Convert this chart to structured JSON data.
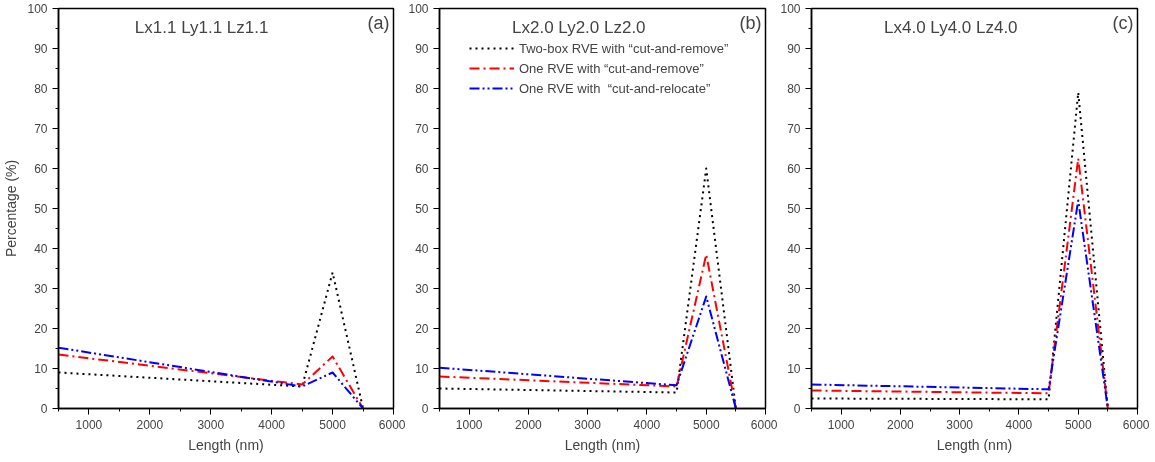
{
  "chart_data": [
    {
      "type": "line",
      "title": "Lx1.1 Ly1.1 Lz1.1",
      "annotations": [
        "(a)"
      ],
      "xlabel": "Length (nm)",
      "ylabel": "Percentage (%)",
      "x": [
        500,
        4500,
        5000,
        5500
      ],
      "xlim": [
        500,
        6000
      ],
      "ylim": [
        0,
        100
      ],
      "xticks": [
        {
          "value": 500,
          "label": null
        },
        1000,
        {
          "value": 1500,
          "label": null
        },
        2000,
        {
          "value": 2500,
          "label": null
        },
        3000,
        {
          "value": 3500,
          "label": null
        },
        4000,
        {
          "value": 4500,
          "label": null
        },
        5000,
        {
          "value": 5500,
          "label": null
        },
        6000
      ],
      "yticks": [
        0,
        {
          "value": 5,
          "label": null
        },
        10,
        {
          "value": 15,
          "label": null
        },
        20,
        {
          "value": 25,
          "label": null
        },
        30,
        {
          "value": 35,
          "label": null
        },
        40,
        {
          "value": 45,
          "label": null
        },
        50,
        {
          "value": 55,
          "label": null
        },
        60,
        {
          "value": 65,
          "label": null
        },
        70,
        {
          "value": 75,
          "label": null
        },
        80,
        {
          "value": 85,
          "label": null
        },
        90,
        {
          "value": 95,
          "label": null
        },
        100
      ],
      "grid": false,
      "legend": false,
      "series": [
        {
          "color": "#000000",
          "line_style": "dotted",
          "values": [
            9,
            5.5,
            34,
            0
          ]
        },
        {
          "color": "#ff0000",
          "line_style": "dashdot",
          "values": [
            13.5,
            6,
            13,
            0
          ]
        },
        {
          "color": "#0000ff",
          "line_style": "dashdotdot",
          "values": [
            15.2,
            5.5,
            9,
            0
          ]
        }
      ]
    },
    {
      "type": "line",
      "title": "Lx2.0 Ly2.0 Lz2.0",
      "annotations": [
        "(b)"
      ],
      "xlabel": "Length (nm)",
      "x": [
        500,
        4500,
        5000,
        5500
      ],
      "xlim": [
        500,
        6000
      ],
      "ylim": [
        0,
        100
      ],
      "xticks": [
        {
          "value": 500,
          "label": null
        },
        1000,
        {
          "value": 1500,
          "label": null
        },
        2000,
        {
          "value": 2500,
          "label": null
        },
        3000,
        {
          "value": 3500,
          "label": null
        },
        4000,
        {
          "value": 4500,
          "label": null
        },
        5000,
        {
          "value": 5500,
          "label": null
        },
        6000
      ],
      "yticks": [
        0,
        {
          "value": 5,
          "label": null
        },
        10,
        {
          "value": 15,
          "label": null
        },
        20,
        {
          "value": 25,
          "label": null
        },
        30,
        {
          "value": 35,
          "label": null
        },
        40,
        {
          "value": 45,
          "label": null
        },
        50,
        {
          "value": 55,
          "label": null
        },
        60,
        {
          "value": 65,
          "label": null
        },
        70,
        {
          "value": 75,
          "label": null
        },
        80,
        {
          "value": 85,
          "label": null
        },
        90,
        {
          "value": 95,
          "label": null
        },
        100
      ],
      "grid": false,
      "legend": "top left",
      "series": [
        {
          "name": "Two-box RVE with “cut-and-remove”",
          "color": "#000000",
          "line_style": "dotted",
          "values": [
            5,
            4,
            60,
            0
          ]
        },
        {
          "name": "One RVE with “cut-and-remove”",
          "color": "#ff0000",
          "line_style": "dashdot",
          "values": [
            8,
            5.5,
            38.5,
            0
          ]
        },
        {
          "name": "One RVE with  “cut-and-relocate”",
          "color": "#0000ff",
          "line_style": "dashdotdot",
          "values": [
            10.2,
            5.8,
            28,
            0
          ]
        }
      ]
    },
    {
      "type": "line",
      "title": "Lx4.0 Ly4.0 Lz4.0",
      "annotations": [
        "(c)"
      ],
      "xlabel": "Length (nm)",
      "x": [
        500,
        4500,
        5000,
        5500
      ],
      "xlim": [
        500,
        6000
      ],
      "ylim": [
        0,
        100
      ],
      "xticks": [
        {
          "value": 500,
          "label": null
        },
        1000,
        {
          "value": 1500,
          "label": null
        },
        2000,
        {
          "value": 2500,
          "label": null
        },
        3000,
        {
          "value": 3500,
          "label": null
        },
        4000,
        {
          "value": 4500,
          "label": null
        },
        5000,
        {
          "value": 5500,
          "label": null
        },
        6000
      ],
      "yticks": [
        0,
        {
          "value": 5,
          "label": null
        },
        10,
        {
          "value": 15,
          "label": null
        },
        20,
        {
          "value": 25,
          "label": null
        },
        30,
        {
          "value": 35,
          "label": null
        },
        40,
        {
          "value": 45,
          "label": null
        },
        50,
        {
          "value": 55,
          "label": null
        },
        60,
        {
          "value": 65,
          "label": null
        },
        70,
        {
          "value": 75,
          "label": null
        },
        80,
        {
          "value": 85,
          "label": null
        },
        90,
        {
          "value": 95,
          "label": null
        },
        100
      ],
      "grid": false,
      "legend": false,
      "series": [
        {
          "color": "#000000",
          "line_style": "dotted",
          "values": [
            2.5,
            2.3,
            79,
            0
          ]
        },
        {
          "color": "#ff0000",
          "line_style": "dashdot",
          "values": [
            4.5,
            3.8,
            62.5,
            0
          ]
        },
        {
          "color": "#0000ff",
          "line_style": "dashdotdot",
          "values": [
            6,
            4.8,
            52,
            0
          ]
        }
      ]
    }
  ]
}
